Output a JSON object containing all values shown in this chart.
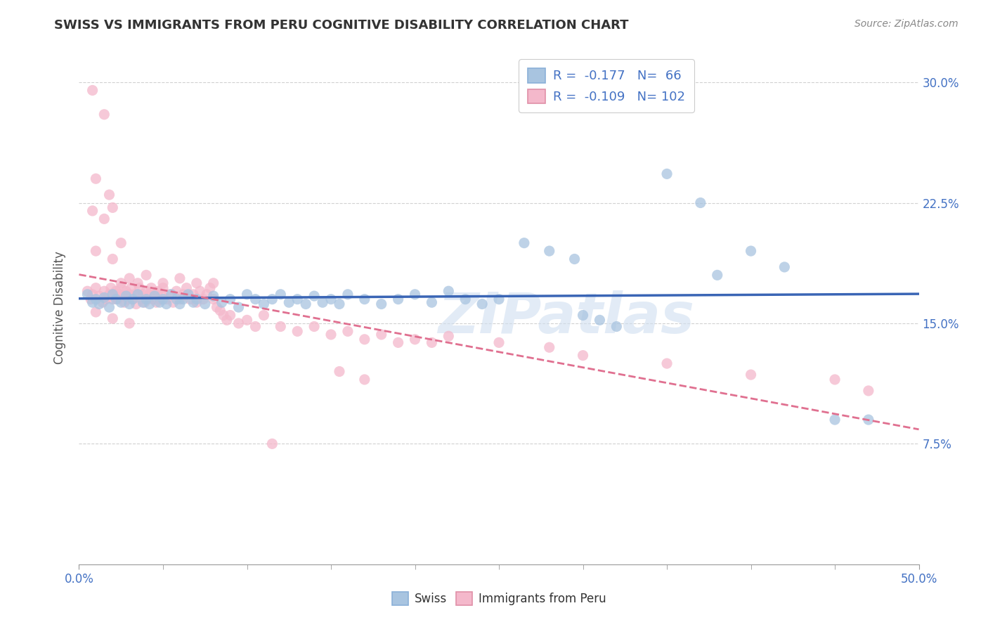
{
  "title": "SWISS VS IMMIGRANTS FROM PERU COGNITIVE DISABILITY CORRELATION CHART",
  "source": "Source: ZipAtlas.com",
  "ylabel": "Cognitive Disability",
  "xlim": [
    0.0,
    0.5
  ],
  "ylim": [
    0.0,
    0.32
  ],
  "yticks": [
    0.075,
    0.15,
    0.225,
    0.3
  ],
  "ytick_labels": [
    "7.5%",
    "15.0%",
    "22.5%",
    "30.0%"
  ],
  "xtick_edge_left": "0.0%",
  "xtick_edge_right": "50.0%",
  "watermark": "ZIPatlas",
  "swiss_color": "#a8c4e0",
  "peru_color": "#f4b8cb",
  "swiss_line_color": "#3a65b5",
  "peru_line_color": "#e07090",
  "swiss_scatter": [
    [
      0.005,
      0.168
    ],
    [
      0.008,
      0.163
    ],
    [
      0.01,
      0.165
    ],
    [
      0.012,
      0.162
    ],
    [
      0.015,
      0.166
    ],
    [
      0.018,
      0.16
    ],
    [
      0.02,
      0.168
    ],
    [
      0.022,
      0.165
    ],
    [
      0.025,
      0.163
    ],
    [
      0.028,
      0.167
    ],
    [
      0.03,
      0.162
    ],
    [
      0.032,
      0.165
    ],
    [
      0.035,
      0.168
    ],
    [
      0.038,
      0.163
    ],
    [
      0.04,
      0.165
    ],
    [
      0.042,
      0.162
    ],
    [
      0.045,
      0.167
    ],
    [
      0.048,
      0.163
    ],
    [
      0.05,
      0.165
    ],
    [
      0.052,
      0.162
    ],
    [
      0.055,
      0.168
    ],
    [
      0.058,
      0.165
    ],
    [
      0.06,
      0.162
    ],
    [
      0.062,
      0.165
    ],
    [
      0.065,
      0.168
    ],
    [
      0.068,
      0.163
    ],
    [
      0.07,
      0.165
    ],
    [
      0.075,
      0.162
    ],
    [
      0.08,
      0.167
    ],
    [
      0.085,
      0.163
    ],
    [
      0.09,
      0.165
    ],
    [
      0.095,
      0.16
    ],
    [
      0.1,
      0.168
    ],
    [
      0.105,
      0.165
    ],
    [
      0.11,
      0.162
    ],
    [
      0.115,
      0.165
    ],
    [
      0.12,
      0.168
    ],
    [
      0.125,
      0.163
    ],
    [
      0.13,
      0.165
    ],
    [
      0.135,
      0.162
    ],
    [
      0.14,
      0.167
    ],
    [
      0.145,
      0.163
    ],
    [
      0.15,
      0.165
    ],
    [
      0.155,
      0.162
    ],
    [
      0.16,
      0.168
    ],
    [
      0.17,
      0.165
    ],
    [
      0.18,
      0.162
    ],
    [
      0.19,
      0.165
    ],
    [
      0.2,
      0.168
    ],
    [
      0.21,
      0.163
    ],
    [
      0.22,
      0.17
    ],
    [
      0.23,
      0.165
    ],
    [
      0.24,
      0.162
    ],
    [
      0.25,
      0.165
    ],
    [
      0.265,
      0.2
    ],
    [
      0.28,
      0.195
    ],
    [
      0.295,
      0.19
    ],
    [
      0.3,
      0.155
    ],
    [
      0.31,
      0.152
    ],
    [
      0.32,
      0.148
    ],
    [
      0.35,
      0.243
    ],
    [
      0.37,
      0.225
    ],
    [
      0.38,
      0.18
    ],
    [
      0.4,
      0.195
    ],
    [
      0.42,
      0.185
    ],
    [
      0.45,
      0.09
    ],
    [
      0.47,
      0.09
    ]
  ],
  "peru_scatter": [
    [
      0.005,
      0.17
    ],
    [
      0.007,
      0.165
    ],
    [
      0.008,
      0.168
    ],
    [
      0.01,
      0.172
    ],
    [
      0.012,
      0.167
    ],
    [
      0.014,
      0.163
    ],
    [
      0.015,
      0.17
    ],
    [
      0.016,
      0.165
    ],
    [
      0.018,
      0.168
    ],
    [
      0.019,
      0.172
    ],
    [
      0.02,
      0.165
    ],
    [
      0.021,
      0.168
    ],
    [
      0.022,
      0.17
    ],
    [
      0.023,
      0.165
    ],
    [
      0.024,
      0.168
    ],
    [
      0.025,
      0.172
    ],
    [
      0.026,
      0.167
    ],
    [
      0.027,
      0.163
    ],
    [
      0.028,
      0.17
    ],
    [
      0.029,
      0.165
    ],
    [
      0.03,
      0.168
    ],
    [
      0.031,
      0.172
    ],
    [
      0.032,
      0.165
    ],
    [
      0.033,
      0.168
    ],
    [
      0.034,
      0.162
    ],
    [
      0.035,
      0.168
    ],
    [
      0.036,
      0.172
    ],
    [
      0.037,
      0.165
    ],
    [
      0.038,
      0.168
    ],
    [
      0.039,
      0.163
    ],
    [
      0.04,
      0.17
    ],
    [
      0.041,
      0.165
    ],
    [
      0.042,
      0.168
    ],
    [
      0.043,
      0.172
    ],
    [
      0.044,
      0.165
    ],
    [
      0.045,
      0.168
    ],
    [
      0.046,
      0.163
    ],
    [
      0.047,
      0.17
    ],
    [
      0.048,
      0.165
    ],
    [
      0.049,
      0.168
    ],
    [
      0.05,
      0.172
    ],
    [
      0.052,
      0.165
    ],
    [
      0.054,
      0.168
    ],
    [
      0.056,
      0.163
    ],
    [
      0.058,
      0.17
    ],
    [
      0.06,
      0.165
    ],
    [
      0.062,
      0.168
    ],
    [
      0.064,
      0.172
    ],
    [
      0.066,
      0.165
    ],
    [
      0.068,
      0.168
    ],
    [
      0.07,
      0.163
    ],
    [
      0.072,
      0.17
    ],
    [
      0.074,
      0.165
    ],
    [
      0.076,
      0.168
    ],
    [
      0.078,
      0.172
    ],
    [
      0.08,
      0.165
    ],
    [
      0.082,
      0.16
    ],
    [
      0.084,
      0.158
    ],
    [
      0.086,
      0.155
    ],
    [
      0.088,
      0.152
    ],
    [
      0.09,
      0.155
    ],
    [
      0.095,
      0.15
    ],
    [
      0.1,
      0.152
    ],
    [
      0.105,
      0.148
    ],
    [
      0.11,
      0.155
    ],
    [
      0.12,
      0.148
    ],
    [
      0.13,
      0.145
    ],
    [
      0.14,
      0.148
    ],
    [
      0.15,
      0.143
    ],
    [
      0.16,
      0.145
    ],
    [
      0.17,
      0.14
    ],
    [
      0.18,
      0.143
    ],
    [
      0.19,
      0.138
    ],
    [
      0.2,
      0.14
    ],
    [
      0.21,
      0.138
    ],
    [
      0.22,
      0.142
    ],
    [
      0.25,
      0.138
    ],
    [
      0.28,
      0.135
    ],
    [
      0.3,
      0.13
    ],
    [
      0.35,
      0.125
    ],
    [
      0.4,
      0.118
    ],
    [
      0.45,
      0.115
    ],
    [
      0.47,
      0.108
    ],
    [
      0.01,
      0.195
    ],
    [
      0.02,
      0.19
    ],
    [
      0.025,
      0.2
    ],
    [
      0.008,
      0.22
    ],
    [
      0.015,
      0.215
    ],
    [
      0.02,
      0.222
    ],
    [
      0.01,
      0.24
    ],
    [
      0.018,
      0.23
    ],
    [
      0.008,
      0.295
    ],
    [
      0.015,
      0.28
    ],
    [
      0.01,
      0.157
    ],
    [
      0.02,
      0.153
    ],
    [
      0.03,
      0.15
    ],
    [
      0.025,
      0.175
    ],
    [
      0.03,
      0.178
    ],
    [
      0.035,
      0.175
    ],
    [
      0.04,
      0.18
    ],
    [
      0.05,
      0.175
    ],
    [
      0.06,
      0.178
    ],
    [
      0.07,
      0.175
    ],
    [
      0.08,
      0.175
    ],
    [
      0.115,
      0.075
    ],
    [
      0.155,
      0.12
    ],
    [
      0.17,
      0.115
    ]
  ],
  "background_color": "#ffffff",
  "grid_color": "#cccccc"
}
